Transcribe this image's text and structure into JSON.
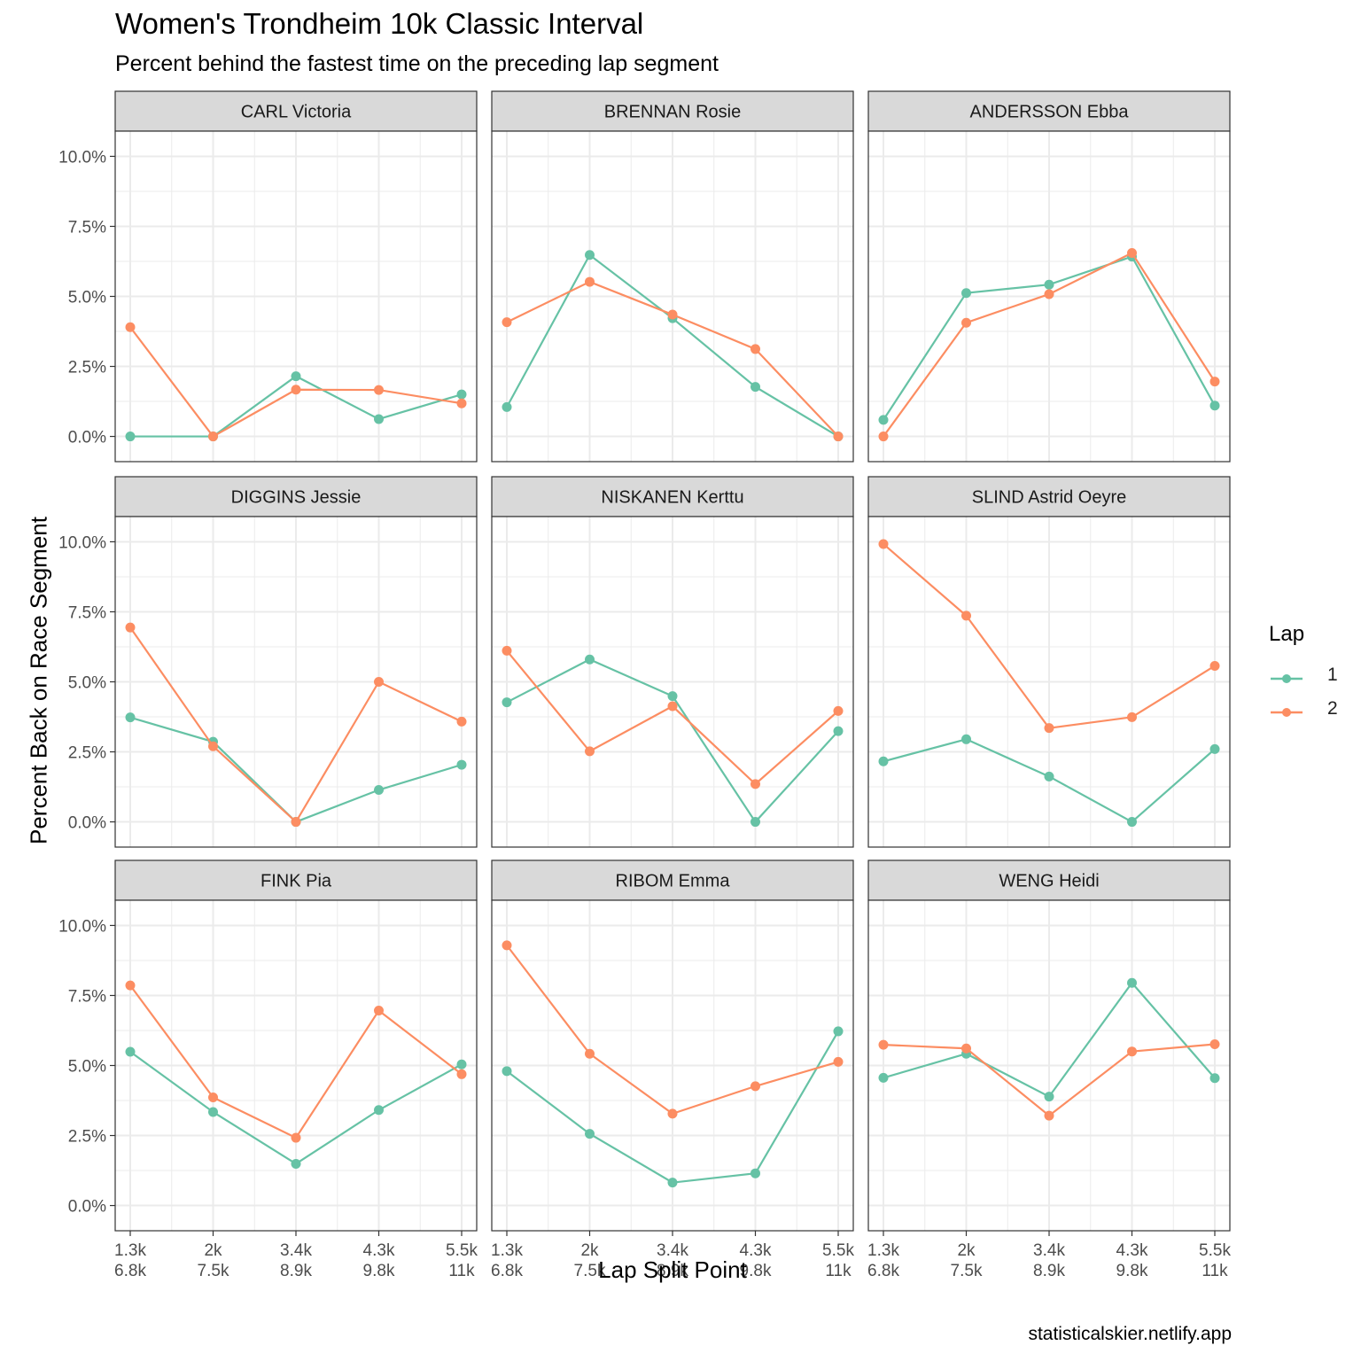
{
  "header": {
    "title": "Women's Trondheim 10k Classic Interval",
    "subtitle": "Percent behind the fastest time on the preceding lap segment"
  },
  "footer": {
    "credit": "statisticalskier.netlify.app"
  },
  "colors": {
    "lap1": "#66c2a5",
    "lap2": "#fc8d62",
    "strip": "#d9d9d9",
    "grid": "#ebebeb"
  },
  "chart_data": {
    "type": "line",
    "xlabel": "Lap Split Point",
    "ylabel": "Percent Back on Race Segment",
    "categories": [
      "1.3k\n6.8k",
      "2k\n7.5k",
      "3.4k\n8.9k",
      "4.3k\n9.8k",
      "5.5k\n11k"
    ],
    "yticks": [
      "0.0%",
      "2.5%",
      "5.0%",
      "7.5%",
      "10.0%"
    ],
    "ylim": [
      0,
      10
    ],
    "legend": {
      "title": "Lap",
      "position": "right",
      "entries": [
        "1",
        "2"
      ]
    },
    "grid": true,
    "panels": [
      {
        "name": "CARL Victoria",
        "series": [
          {
            "name": "1",
            "values": [
              0.0,
              0.0,
              2.15,
              0.62,
              1.5
            ]
          },
          {
            "name": "2",
            "values": [
              3.9,
              0.0,
              1.67,
              1.66,
              1.18
            ]
          }
        ]
      },
      {
        "name": "BRENNAN Rosie",
        "series": [
          {
            "name": "1",
            "values": [
              1.05,
              6.48,
              4.22,
              1.77,
              0.0
            ]
          },
          {
            "name": "2",
            "values": [
              4.08,
              5.52,
              4.35,
              3.12,
              0.0
            ]
          }
        ]
      },
      {
        "name": "ANDERSSON Ebba",
        "series": [
          {
            "name": "1",
            "values": [
              0.59,
              5.12,
              5.42,
              6.42,
              1.1
            ]
          },
          {
            "name": "2",
            "values": [
              0.0,
              4.06,
              5.08,
              6.55,
              1.96
            ]
          }
        ]
      },
      {
        "name": "DIGGINS Jessie",
        "series": [
          {
            "name": "1",
            "values": [
              3.73,
              2.86,
              0.0,
              1.14,
              2.04
            ]
          },
          {
            "name": "2",
            "values": [
              6.94,
              2.7,
              0.0,
              5.0,
              3.58
            ]
          }
        ]
      },
      {
        "name": "NISKANEN Kerttu",
        "series": [
          {
            "name": "1",
            "values": [
              4.27,
              5.8,
              4.49,
              0.0,
              3.24
            ]
          },
          {
            "name": "2",
            "values": [
              6.11,
              2.52,
              4.13,
              1.35,
              3.96
            ]
          }
        ]
      },
      {
        "name": "SLIND Astrid Oeyre",
        "series": [
          {
            "name": "1",
            "values": [
              2.16,
              2.95,
              1.62,
              0.0,
              2.6
            ]
          },
          {
            "name": "2",
            "values": [
              9.92,
              7.36,
              3.35,
              3.74,
              5.57
            ]
          }
        ]
      },
      {
        "name": "FINK Pia",
        "series": [
          {
            "name": "1",
            "values": [
              5.49,
              3.34,
              1.49,
              3.41,
              5.04
            ]
          },
          {
            "name": "2",
            "values": [
              7.86,
              3.86,
              2.42,
              6.96,
              4.69
            ]
          }
        ]
      },
      {
        "name": "RIBOM Emma",
        "series": [
          {
            "name": "1",
            "values": [
              4.8,
              2.56,
              0.82,
              1.15,
              6.22
            ]
          },
          {
            "name": "2",
            "values": [
              9.29,
              5.42,
              3.28,
              4.26,
              5.13
            ]
          }
        ]
      },
      {
        "name": "WENG Heidi",
        "series": [
          {
            "name": "1",
            "values": [
              4.56,
              5.42,
              3.89,
              7.95,
              4.55
            ]
          },
          {
            "name": "2",
            "values": [
              5.74,
              5.61,
              3.21,
              5.5,
              5.76
            ]
          }
        ]
      }
    ]
  }
}
